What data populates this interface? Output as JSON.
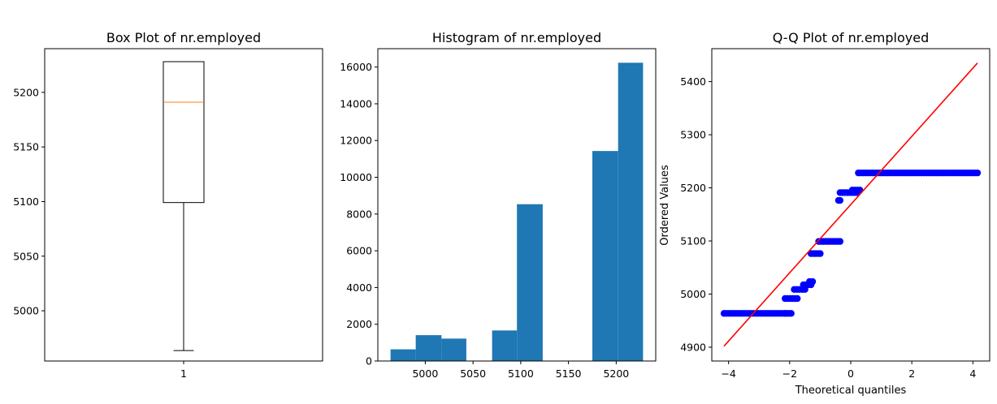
{
  "chart_data": [
    {
      "type": "box",
      "title": "Box Plot of nr.employed",
      "categories": [
        "1"
      ],
      "box": {
        "min": 4963.6,
        "q1": 5099.1,
        "median": 5191.0,
        "q3": 5228.1,
        "max": 5228.1
      },
      "ylim": [
        4954,
        5240
      ],
      "yticks": [
        5000,
        5050,
        5100,
        5150,
        5200
      ],
      "colors": {
        "box": "#000000",
        "median": "#ff7f0e"
      }
    },
    {
      "type": "bar",
      "title": "Histogram of nr.employed",
      "bins": [
        {
          "x0": 4963.6,
          "x1": 4990.0,
          "count": 635
        },
        {
          "x0": 4990.0,
          "x1": 5017.0,
          "count": 1407
        },
        {
          "x0": 5017.0,
          "x1": 5043.0,
          "count": 1220
        },
        {
          "x0": 5043.0,
          "x1": 5070.0,
          "count": 0
        },
        {
          "x0": 5070.0,
          "x1": 5096.0,
          "count": 1663
        },
        {
          "x0": 5096.0,
          "x1": 5123.0,
          "count": 8534
        },
        {
          "x0": 5123.0,
          "x1": 5149.0,
          "count": 0
        },
        {
          "x0": 5149.0,
          "x1": 5175.0,
          "count": 0
        },
        {
          "x0": 5175.0,
          "x1": 5202.0,
          "count": 11430
        },
        {
          "x0": 5202.0,
          "x1": 5228.1,
          "count": 16234
        }
      ],
      "xlim": [
        4950.3,
        5241.4
      ],
      "ylim": [
        0,
        17000
      ],
      "xticks": [
        5000,
        5050,
        5100,
        5150,
        5200
      ],
      "yticks": [
        0,
        2000,
        4000,
        6000,
        8000,
        10000,
        12000,
        14000,
        16000
      ],
      "colors": {
        "bar": "#1f77b4"
      }
    },
    {
      "type": "scatter",
      "title": "Q-Q Plot of nr.employed",
      "xlabel": "Theoretical quantiles",
      "ylabel": "Ordered Values",
      "xlim": [
        -4.55,
        4.55
      ],
      "ylim": [
        4874,
        5462
      ],
      "xticks": [
        -4,
        -2,
        0,
        2,
        4
      ],
      "yticks": [
        4900,
        5000,
        5100,
        5200,
        5300,
        5400
      ],
      "steps": [
        {
          "x0": -4.15,
          "x1": -2.15,
          "y": 4963.6
        },
        {
          "x0": -2.15,
          "x1": -1.95,
          "y": 4963.6
        },
        {
          "x0": -2.15,
          "x1": -1.75,
          "y": 4991.6
        },
        {
          "x0": -1.85,
          "x1": -1.5,
          "y": 5008.7
        },
        {
          "x0": -1.55,
          "x1": -1.3,
          "y": 5017.5
        },
        {
          "x0": -1.35,
          "x1": -1.25,
          "y": 5023.5
        },
        {
          "x0": -1.3,
          "x1": -1.0,
          "y": 5076.2
        },
        {
          "x0": -1.05,
          "x1": -0.35,
          "y": 5099.1
        },
        {
          "x0": -0.4,
          "x1": -0.35,
          "y": 5176.3
        },
        {
          "x0": -0.35,
          "x1": 0.2,
          "y": 5191.0
        },
        {
          "x0": 0.05,
          "x1": 0.3,
          "y": 5195.8
        },
        {
          "x0": 0.25,
          "x1": 4.15,
          "y": 5228.1
        }
      ],
      "fit_line": {
        "x": [
          -4.15,
          4.15
        ],
        "y": [
          4902,
          5435
        ]
      },
      "colors": {
        "points": "#0000ff",
        "fit": "#ff0000"
      }
    }
  ]
}
